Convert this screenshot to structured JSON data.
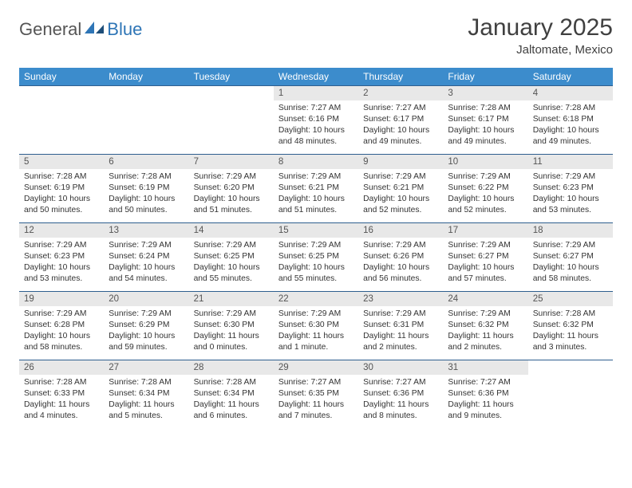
{
  "brand": {
    "part1": "General",
    "part2": "Blue"
  },
  "title": "January 2025",
  "location": "Jaltomate, Mexico",
  "header_bg": "#3c8ccc",
  "header_fg": "#ffffff",
  "rule_color": "#2e5f8f",
  "daynum_bg": "#e8e8e8",
  "weekdays": [
    "Sunday",
    "Monday",
    "Tuesday",
    "Wednesday",
    "Thursday",
    "Friday",
    "Saturday"
  ],
  "weeks": [
    [
      null,
      null,
      null,
      {
        "n": "1",
        "sr": "7:27 AM",
        "ss": "6:16 PM",
        "dl": "10 hours and 48 minutes."
      },
      {
        "n": "2",
        "sr": "7:27 AM",
        "ss": "6:17 PM",
        "dl": "10 hours and 49 minutes."
      },
      {
        "n": "3",
        "sr": "7:28 AM",
        "ss": "6:17 PM",
        "dl": "10 hours and 49 minutes."
      },
      {
        "n": "4",
        "sr": "7:28 AM",
        "ss": "6:18 PM",
        "dl": "10 hours and 49 minutes."
      }
    ],
    [
      {
        "n": "5",
        "sr": "7:28 AM",
        "ss": "6:19 PM",
        "dl": "10 hours and 50 minutes."
      },
      {
        "n": "6",
        "sr": "7:28 AM",
        "ss": "6:19 PM",
        "dl": "10 hours and 50 minutes."
      },
      {
        "n": "7",
        "sr": "7:29 AM",
        "ss": "6:20 PM",
        "dl": "10 hours and 51 minutes."
      },
      {
        "n": "8",
        "sr": "7:29 AM",
        "ss": "6:21 PM",
        "dl": "10 hours and 51 minutes."
      },
      {
        "n": "9",
        "sr": "7:29 AM",
        "ss": "6:21 PM",
        "dl": "10 hours and 52 minutes."
      },
      {
        "n": "10",
        "sr": "7:29 AM",
        "ss": "6:22 PM",
        "dl": "10 hours and 52 minutes."
      },
      {
        "n": "11",
        "sr": "7:29 AM",
        "ss": "6:23 PM",
        "dl": "10 hours and 53 minutes."
      }
    ],
    [
      {
        "n": "12",
        "sr": "7:29 AM",
        "ss": "6:23 PM",
        "dl": "10 hours and 53 minutes."
      },
      {
        "n": "13",
        "sr": "7:29 AM",
        "ss": "6:24 PM",
        "dl": "10 hours and 54 minutes."
      },
      {
        "n": "14",
        "sr": "7:29 AM",
        "ss": "6:25 PM",
        "dl": "10 hours and 55 minutes."
      },
      {
        "n": "15",
        "sr": "7:29 AM",
        "ss": "6:25 PM",
        "dl": "10 hours and 55 minutes."
      },
      {
        "n": "16",
        "sr": "7:29 AM",
        "ss": "6:26 PM",
        "dl": "10 hours and 56 minutes."
      },
      {
        "n": "17",
        "sr": "7:29 AM",
        "ss": "6:27 PM",
        "dl": "10 hours and 57 minutes."
      },
      {
        "n": "18",
        "sr": "7:29 AM",
        "ss": "6:27 PM",
        "dl": "10 hours and 58 minutes."
      }
    ],
    [
      {
        "n": "19",
        "sr": "7:29 AM",
        "ss": "6:28 PM",
        "dl": "10 hours and 58 minutes."
      },
      {
        "n": "20",
        "sr": "7:29 AM",
        "ss": "6:29 PM",
        "dl": "10 hours and 59 minutes."
      },
      {
        "n": "21",
        "sr": "7:29 AM",
        "ss": "6:30 PM",
        "dl": "11 hours and 0 minutes."
      },
      {
        "n": "22",
        "sr": "7:29 AM",
        "ss": "6:30 PM",
        "dl": "11 hours and 1 minute."
      },
      {
        "n": "23",
        "sr": "7:29 AM",
        "ss": "6:31 PM",
        "dl": "11 hours and 2 minutes."
      },
      {
        "n": "24",
        "sr": "7:29 AM",
        "ss": "6:32 PM",
        "dl": "11 hours and 2 minutes."
      },
      {
        "n": "25",
        "sr": "7:28 AM",
        "ss": "6:32 PM",
        "dl": "11 hours and 3 minutes."
      }
    ],
    [
      {
        "n": "26",
        "sr": "7:28 AM",
        "ss": "6:33 PM",
        "dl": "11 hours and 4 minutes."
      },
      {
        "n": "27",
        "sr": "7:28 AM",
        "ss": "6:34 PM",
        "dl": "11 hours and 5 minutes."
      },
      {
        "n": "28",
        "sr": "7:28 AM",
        "ss": "6:34 PM",
        "dl": "11 hours and 6 minutes."
      },
      {
        "n": "29",
        "sr": "7:27 AM",
        "ss": "6:35 PM",
        "dl": "11 hours and 7 minutes."
      },
      {
        "n": "30",
        "sr": "7:27 AM",
        "ss": "6:36 PM",
        "dl": "11 hours and 8 minutes."
      },
      {
        "n": "31",
        "sr": "7:27 AM",
        "ss": "6:36 PM",
        "dl": "11 hours and 9 minutes."
      },
      null
    ]
  ]
}
